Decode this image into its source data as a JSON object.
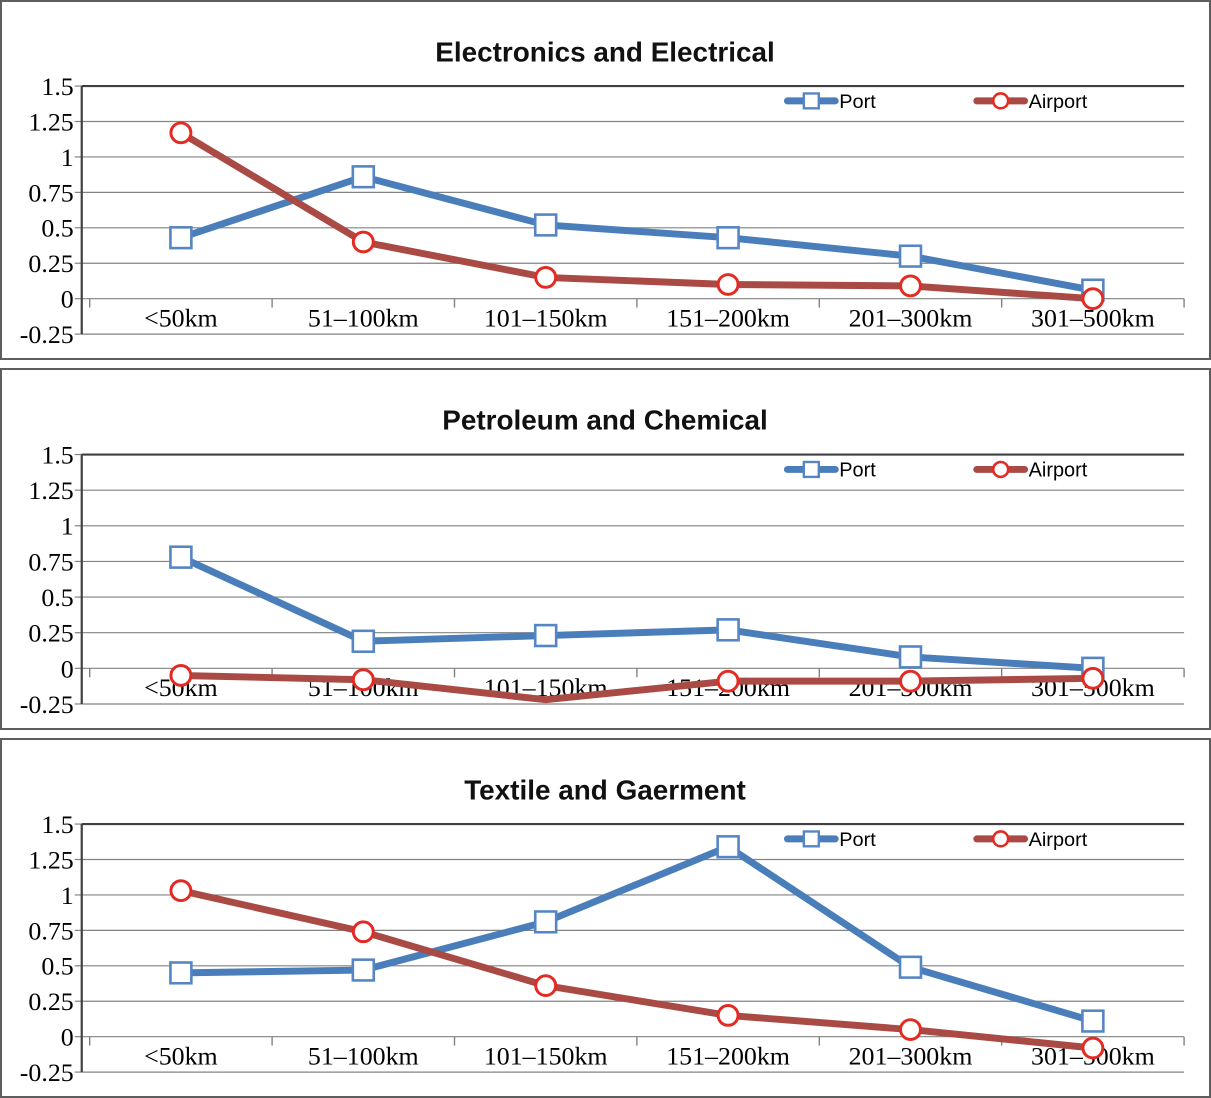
{
  "page": {
    "background_color": "#ffffff",
    "panel_border_color": "#5e5e5e",
    "description": "Three stacked line charts comparing Port and Airport values across distance bands"
  },
  "colors": {
    "port_line": "#4a7ebb",
    "port_marker_border": "#5585c4",
    "port_marker_fill": "#ffffff",
    "airport_line": "#a94a45",
    "airport_marker_border": "#e32b23",
    "airport_marker_fill": "#ffffff",
    "gridline": "#828282",
    "axis_dark": "#404040",
    "text": "#000000"
  },
  "chart_data": [
    {
      "type": "line",
      "title": "Electronics and Electrical",
      "categories": [
        "<50km",
        "51–100km",
        "101–150km",
        "151–200km",
        "201–300km",
        "301–500km"
      ],
      "y_ticks": [
        1.5,
        1.25,
        1,
        0.75,
        0.5,
        0.25,
        0,
        -0.25
      ],
      "y_tick_labels": [
        "1.5",
        "1.25",
        "1",
        "0.75",
        "0.5",
        "0.25",
        "0",
        "-0.25"
      ],
      "ylim": [
        -0.25,
        1.5
      ],
      "grid": true,
      "legend_position": "inside-top-right",
      "series": [
        {
          "name": "Port",
          "marker": "open-square",
          "values": [
            0.43,
            0.86,
            0.52,
            0.43,
            0.3,
            0.06
          ],
          "markers_hidden_at": []
        },
        {
          "name": "Airport",
          "marker": "open-circle",
          "values": [
            1.17,
            0.4,
            0.15,
            0.1,
            0.09,
            0.0
          ],
          "markers_hidden_at": []
        }
      ]
    },
    {
      "type": "line",
      "title": "Petroleum and Chemical",
      "categories": [
        "<50km",
        "51–100km",
        "101–150km",
        "151–200km",
        "201–300km",
        "301–500km"
      ],
      "y_ticks": [
        1.5,
        1.25,
        1,
        0.75,
        0.5,
        0.25,
        0,
        -0.25
      ],
      "y_tick_labels": [
        "1.5",
        "1.25",
        "1",
        "0.75",
        "0.5",
        "0.25",
        "0",
        "-0.25"
      ],
      "ylim": [
        -0.25,
        1.5
      ],
      "grid": true,
      "legend_position": "inside-top-right",
      "series": [
        {
          "name": "Port",
          "marker": "open-square",
          "values": [
            0.78,
            0.19,
            0.23,
            0.27,
            0.08,
            0.0
          ],
          "markers_hidden_at": []
        },
        {
          "name": "Airport",
          "marker": "open-circle",
          "values": [
            -0.05,
            -0.08,
            -0.22,
            -0.09,
            -0.09,
            -0.07
          ],
          "markers_hidden_at": [
            2
          ]
        }
      ]
    },
    {
      "type": "line",
      "title": "Textile and Gaerment",
      "categories": [
        "<50km",
        "51–100km",
        "101–150km",
        "151–200km",
        "201–300km",
        "301–500km"
      ],
      "y_ticks": [
        1.5,
        1.25,
        1,
        0.75,
        0.5,
        0.25,
        0,
        -0.25
      ],
      "y_tick_labels": [
        "1.5",
        "1.25",
        "1",
        "0.75",
        "0.5",
        "0.25",
        "0",
        "-0.25"
      ],
      "ylim": [
        -0.25,
        1.5
      ],
      "grid": true,
      "legend_position": "inside-top-right",
      "series": [
        {
          "name": "Port",
          "marker": "open-square",
          "values": [
            0.45,
            0.47,
            0.81,
            1.34,
            0.49,
            0.11
          ],
          "markers_hidden_at": []
        },
        {
          "name": "Airport",
          "marker": "open-circle",
          "values": [
            1.03,
            0.74,
            0.36,
            0.15,
            0.05,
            -0.08
          ],
          "markers_hidden_at": []
        }
      ]
    }
  ]
}
